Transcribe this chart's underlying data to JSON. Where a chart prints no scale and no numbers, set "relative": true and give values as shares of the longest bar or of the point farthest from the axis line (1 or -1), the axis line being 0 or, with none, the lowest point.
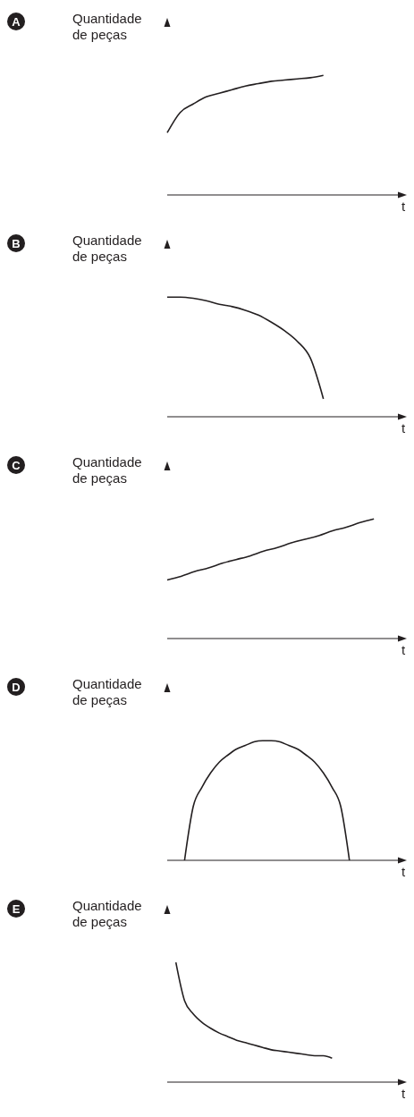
{
  "chart_data": [
    {
      "type": "line",
      "annotations": [
        "A"
      ],
      "ylabel": "Quantidade de peças",
      "xlabel": "t",
      "relative": true,
      "marker": "none",
      "categories": [
        null,
        null,
        null,
        null,
        null,
        null,
        null,
        null,
        null,
        null,
        null,
        null,
        null,
        null,
        null,
        null,
        null,
        null,
        null
      ],
      "series": [
        {
          "color": "#231f20",
          "values": [
            0.52,
            0.69,
            0.76,
            0.82,
            0.85,
            0.88,
            0.91,
            0.93,
            0.95,
            0.96,
            0.97,
            0.98,
            1,
            null,
            null,
            null,
            null,
            null,
            null
          ]
        }
      ]
    },
    {
      "type": "line",
      "annotations": [
        "B"
      ],
      "ylabel": "Quantidade de peças",
      "xlabel": "t",
      "relative": true,
      "marker": "none",
      "categories": [
        null,
        null,
        null,
        null,
        null,
        null,
        null,
        null,
        null,
        null,
        null,
        null,
        null,
        null,
        null,
        null,
        null,
        null,
        null
      ],
      "series": [
        {
          "color": "#231f20",
          "values": [
            1,
            1,
            0.99,
            0.97,
            0.94,
            0.92,
            0.89,
            0.85,
            0.79,
            0.72,
            0.63,
            0.49,
            0.15,
            null,
            null,
            null,
            null,
            null,
            null
          ]
        }
      ]
    },
    {
      "type": "line",
      "annotations": [
        "C"
      ],
      "ylabel": "Quantidade de peças",
      "xlabel": "t",
      "relative": true,
      "marker": "none",
      "categories": [
        null,
        null,
        null,
        null,
        null,
        null,
        null,
        null,
        null,
        null,
        null,
        null,
        null,
        null,
        null,
        null,
        null,
        null
      ],
      "series": [
        {
          "color": "#231f20",
          "values": [
            0.49,
            0.52,
            0.56,
            0.59,
            0.63,
            0.66,
            0.69,
            0.73,
            0.76,
            0.8,
            0.83,
            0.86,
            0.9,
            0.93,
            0.97,
            1,
            null,
            null
          ]
        }
      ]
    },
    {
      "type": "line",
      "annotations": [
        "D"
      ],
      "ylabel": "Quantidade de peças",
      "xlabel": "t",
      "relative": true,
      "marker": "none",
      "categories": [
        null,
        null,
        null,
        null,
        null,
        null,
        null,
        null,
        null,
        null,
        null,
        null,
        null,
        null,
        null,
        null,
        null,
        null,
        null,
        null,
        null,
        null,
        null,
        null,
        null,
        null,
        null,
        null
      ],
      "series": [
        {
          "color": "#231f20",
          "values": [
            null,
            null,
            0,
            0.45,
            0.61,
            0.73,
            0.82,
            0.88,
            0.93,
            0.96,
            0.99,
            1,
            1,
            0.99,
            0.96,
            0.93,
            0.88,
            0.82,
            0.73,
            0.61,
            0.45,
            0,
            null,
            null,
            null,
            null,
            null,
            null
          ]
        }
      ]
    },
    {
      "type": "line",
      "annotations": [
        "E"
      ],
      "ylabel": "Quantidade de peças",
      "xlabel": "t",
      "relative": true,
      "marker": "none",
      "categories": [
        null,
        null,
        null,
        null,
        null,
        null,
        null,
        null,
        null,
        null,
        null,
        null,
        null,
        null,
        null,
        null,
        null,
        null,
        null,
        null,
        null,
        null,
        null,
        null,
        null,
        null,
        null,
        null
      ],
      "series": [
        {
          "color": "#231f20",
          "values": [
            null,
            1,
            0.68,
            0.57,
            0.5,
            0.45,
            0.41,
            0.38,
            0.35,
            0.33,
            0.31,
            0.29,
            0.27,
            0.26,
            0.25,
            0.24,
            0.23,
            0.22,
            0.22,
            0.2,
            null,
            null,
            null,
            null,
            null,
            null,
            null,
            null
          ]
        }
      ]
    }
  ]
}
